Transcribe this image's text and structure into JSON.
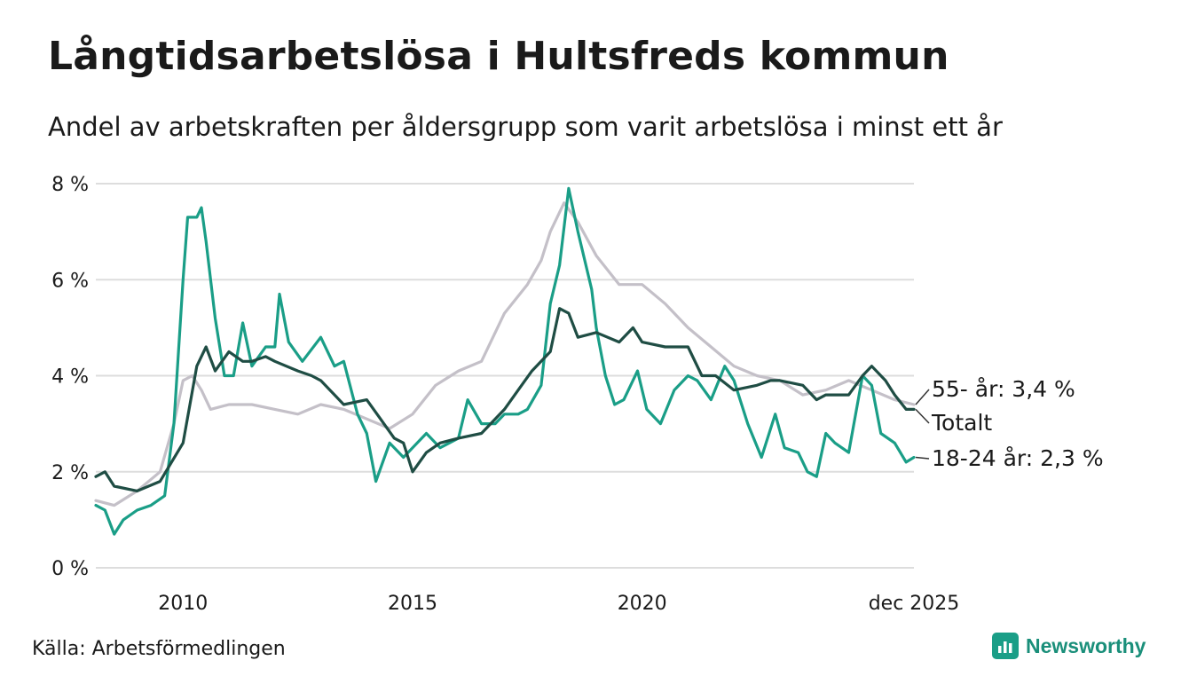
{
  "header": {
    "title": "Långtidsarbetslösa i Hultsfreds kommun",
    "subtitle": "Andel av arbetskraften per åldersgrupp som varit arbetslösa i minst ett år"
  },
  "footer": {
    "source": "Källa: Arbetsförmedlingen",
    "brand": "Newsworthy"
  },
  "colors": {
    "totalt": "#1f4d44",
    "youth": "#1a9e87",
    "older": "#c4c0c8",
    "grid": "#dddddd",
    "text": "#1a1a1a"
  },
  "chart_data": {
    "type": "line",
    "title": "Långtidsarbetslösa i Hultsfreds kommun",
    "subtitle": "Andel av arbetskraften per åldersgrupp som varit arbetslösa i minst ett år",
    "xlabel": "",
    "ylabel": "",
    "xlim": [
      2008.1,
      2025.92
    ],
    "ylim": [
      0,
      8
    ],
    "y_ticks": [
      0,
      2,
      4,
      6,
      8
    ],
    "y_tick_labels": [
      "0 %",
      "2 %",
      "4 %",
      "6 %",
      "8 %"
    ],
    "x_ticks": [
      2010,
      2015,
      2020,
      2025.92
    ],
    "x_tick_labels": [
      "2010",
      "2015",
      "2020",
      "dec 2025"
    ],
    "grid": true,
    "series": [
      {
        "name": "55- år",
        "label": "55- år: 3,4 %",
        "color_key": "older",
        "last_value": 3.4,
        "points": [
          [
            2008.1,
            1.4
          ],
          [
            2008.5,
            1.3
          ],
          [
            2009.0,
            1.6
          ],
          [
            2009.5,
            2.0
          ],
          [
            2009.8,
            3.0
          ],
          [
            2010.0,
            3.9
          ],
          [
            2010.2,
            4.0
          ],
          [
            2010.4,
            3.7
          ],
          [
            2010.6,
            3.3
          ],
          [
            2011.0,
            3.4
          ],
          [
            2011.5,
            3.4
          ],
          [
            2012.0,
            3.3
          ],
          [
            2012.5,
            3.2
          ],
          [
            2013.0,
            3.4
          ],
          [
            2013.5,
            3.3
          ],
          [
            2014.0,
            3.1
          ],
          [
            2014.5,
            2.9
          ],
          [
            2015.0,
            3.2
          ],
          [
            2015.5,
            3.8
          ],
          [
            2016.0,
            4.1
          ],
          [
            2016.5,
            4.3
          ],
          [
            2017.0,
            5.3
          ],
          [
            2017.5,
            5.9
          ],
          [
            2017.8,
            6.4
          ],
          [
            2018.0,
            7.0
          ],
          [
            2018.3,
            7.6
          ],
          [
            2018.6,
            7.2
          ],
          [
            2019.0,
            6.5
          ],
          [
            2019.5,
            5.9
          ],
          [
            2020.0,
            5.9
          ],
          [
            2020.5,
            5.5
          ],
          [
            2021.0,
            5.0
          ],
          [
            2021.5,
            4.6
          ],
          [
            2022.0,
            4.2
          ],
          [
            2022.5,
            4.0
          ],
          [
            2023.0,
            3.9
          ],
          [
            2023.5,
            3.6
          ],
          [
            2024.0,
            3.7
          ],
          [
            2024.5,
            3.9
          ],
          [
            2025.0,
            3.7
          ],
          [
            2025.5,
            3.5
          ],
          [
            2025.92,
            3.4
          ]
        ]
      },
      {
        "name": "18-24 år",
        "label": "18-24 år: 2,3 %",
        "color_key": "youth",
        "last_value": 2.3,
        "points": [
          [
            2008.1,
            1.3
          ],
          [
            2008.3,
            1.2
          ],
          [
            2008.5,
            0.7
          ],
          [
            2008.7,
            1.0
          ],
          [
            2009.0,
            1.2
          ],
          [
            2009.3,
            1.3
          ],
          [
            2009.6,
            1.5
          ],
          [
            2009.8,
            3.0
          ],
          [
            2010.0,
            6.0
          ],
          [
            2010.1,
            7.3
          ],
          [
            2010.3,
            7.3
          ],
          [
            2010.4,
            7.5
          ],
          [
            2010.5,
            6.8
          ],
          [
            2010.7,
            5.2
          ],
          [
            2010.9,
            4.0
          ],
          [
            2011.1,
            4.0
          ],
          [
            2011.3,
            5.1
          ],
          [
            2011.5,
            4.2
          ],
          [
            2011.8,
            4.6
          ],
          [
            2012.0,
            4.6
          ],
          [
            2012.1,
            5.7
          ],
          [
            2012.3,
            4.7
          ],
          [
            2012.6,
            4.3
          ],
          [
            2013.0,
            4.8
          ],
          [
            2013.3,
            4.2
          ],
          [
            2013.5,
            4.3
          ],
          [
            2013.8,
            3.2
          ],
          [
            2014.0,
            2.8
          ],
          [
            2014.2,
            1.8
          ],
          [
            2014.5,
            2.6
          ],
          [
            2014.8,
            2.3
          ],
          [
            2015.0,
            2.5
          ],
          [
            2015.3,
            2.8
          ],
          [
            2015.6,
            2.5
          ],
          [
            2016.0,
            2.7
          ],
          [
            2016.2,
            3.5
          ],
          [
            2016.5,
            3.0
          ],
          [
            2016.8,
            3.0
          ],
          [
            2017.0,
            3.2
          ],
          [
            2017.3,
            3.2
          ],
          [
            2017.5,
            3.3
          ],
          [
            2017.8,
            3.8
          ],
          [
            2018.0,
            5.5
          ],
          [
            2018.2,
            6.3
          ],
          [
            2018.4,
            7.9
          ],
          [
            2018.6,
            7.0
          ],
          [
            2018.9,
            5.8
          ],
          [
            2019.0,
            5.0
          ],
          [
            2019.2,
            4.0
          ],
          [
            2019.4,
            3.4
          ],
          [
            2019.6,
            3.5
          ],
          [
            2019.9,
            4.1
          ],
          [
            2020.1,
            3.3
          ],
          [
            2020.4,
            3.0
          ],
          [
            2020.7,
            3.7
          ],
          [
            2021.0,
            4.0
          ],
          [
            2021.2,
            3.9
          ],
          [
            2021.5,
            3.5
          ],
          [
            2021.8,
            4.2
          ],
          [
            2022.0,
            3.9
          ],
          [
            2022.3,
            3.0
          ],
          [
            2022.6,
            2.3
          ],
          [
            2022.9,
            3.2
          ],
          [
            2023.1,
            2.5
          ],
          [
            2023.4,
            2.4
          ],
          [
            2023.6,
            2.0
          ],
          [
            2023.8,
            1.9
          ],
          [
            2024.0,
            2.8
          ],
          [
            2024.2,
            2.6
          ],
          [
            2024.5,
            2.4
          ],
          [
            2024.8,
            4.0
          ],
          [
            2025.0,
            3.8
          ],
          [
            2025.2,
            2.8
          ],
          [
            2025.5,
            2.6
          ],
          [
            2025.75,
            2.2
          ],
          [
            2025.92,
            2.3
          ]
        ]
      },
      {
        "name": "Totalt",
        "label": "Totalt",
        "color_key": "totalt",
        "last_value": 3.3,
        "points": [
          [
            2008.1,
            1.9
          ],
          [
            2008.3,
            2.0
          ],
          [
            2008.5,
            1.7
          ],
          [
            2009.0,
            1.6
          ],
          [
            2009.5,
            1.8
          ],
          [
            2010.0,
            2.6
          ],
          [
            2010.3,
            4.2
          ],
          [
            2010.5,
            4.6
          ],
          [
            2010.7,
            4.1
          ],
          [
            2011.0,
            4.5
          ],
          [
            2011.3,
            4.3
          ],
          [
            2011.5,
            4.3
          ],
          [
            2011.8,
            4.4
          ],
          [
            2012.0,
            4.3
          ],
          [
            2012.5,
            4.1
          ],
          [
            2012.8,
            4.0
          ],
          [
            2013.0,
            3.9
          ],
          [
            2013.5,
            3.4
          ],
          [
            2014.0,
            3.5
          ],
          [
            2014.3,
            3.1
          ],
          [
            2014.6,
            2.7
          ],
          [
            2014.8,
            2.6
          ],
          [
            2015.0,
            2.0
          ],
          [
            2015.3,
            2.4
          ],
          [
            2015.6,
            2.6
          ],
          [
            2016.0,
            2.7
          ],
          [
            2016.5,
            2.8
          ],
          [
            2017.0,
            3.3
          ],
          [
            2017.3,
            3.7
          ],
          [
            2017.6,
            4.1
          ],
          [
            2018.0,
            4.5
          ],
          [
            2018.2,
            5.4
          ],
          [
            2018.4,
            5.3
          ],
          [
            2018.6,
            4.8
          ],
          [
            2019.0,
            4.9
          ],
          [
            2019.5,
            4.7
          ],
          [
            2019.8,
            5.0
          ],
          [
            2020.0,
            4.7
          ],
          [
            2020.5,
            4.6
          ],
          [
            2021.0,
            4.6
          ],
          [
            2021.3,
            4.0
          ],
          [
            2021.6,
            4.0
          ],
          [
            2022.0,
            3.7
          ],
          [
            2022.5,
            3.8
          ],
          [
            2022.8,
            3.9
          ],
          [
            2023.0,
            3.9
          ],
          [
            2023.5,
            3.8
          ],
          [
            2023.8,
            3.5
          ],
          [
            2024.0,
            3.6
          ],
          [
            2024.5,
            3.6
          ],
          [
            2024.8,
            4.0
          ],
          [
            2025.0,
            4.2
          ],
          [
            2025.3,
            3.9
          ],
          [
            2025.5,
            3.6
          ],
          [
            2025.75,
            3.3
          ],
          [
            2025.92,
            3.3
          ]
        ]
      }
    ]
  }
}
